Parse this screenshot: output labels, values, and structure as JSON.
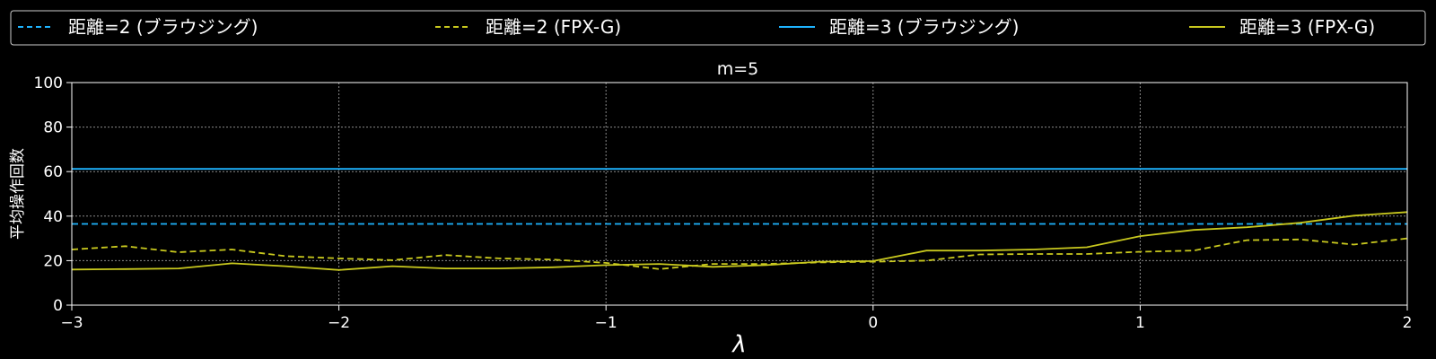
{
  "chart_data": {
    "type": "line",
    "title": "m=5",
    "xlabel": "λ",
    "ylabel": "平均操作回数",
    "xlim": [
      -3,
      2
    ],
    "ylim": [
      0,
      100
    ],
    "xticks": [
      -3,
      -2,
      -1,
      0,
      1,
      2
    ],
    "xtick_labels": [
      "−3",
      "−2",
      "−1",
      "0",
      "1",
      "2"
    ],
    "yticks": [
      0,
      20,
      40,
      60,
      80,
      100
    ],
    "ytick_labels": [
      "0",
      "20",
      "40",
      "60",
      "80",
      "100"
    ],
    "grid": true,
    "legend_position": "top",
    "x": [
      -3.0,
      -2.8,
      -2.6,
      -2.4,
      -2.2,
      -2.0,
      -1.8,
      -1.6,
      -1.4,
      -1.2,
      -1.0,
      -0.8,
      -0.6,
      -0.4,
      -0.2,
      0.0,
      0.2,
      0.4,
      0.6,
      0.8,
      1.0,
      1.2,
      1.4,
      1.6,
      1.8,
      2.0
    ],
    "series": [
      {
        "name": "距離=2 (ブラウジング)",
        "color": "#1eb4ff",
        "dash": "dashed",
        "values": [
          36.5,
          36.5,
          36.5,
          36.5,
          36.5,
          36.5,
          36.5,
          36.5,
          36.5,
          36.5,
          36.5,
          36.5,
          36.5,
          36.5,
          36.5,
          36.5,
          36.5,
          36.5,
          36.5,
          36.5,
          36.5,
          36.5,
          36.5,
          36.5,
          36.5,
          36.5
        ]
      },
      {
        "name": "距離=2 (FPX-G)",
        "color": "#c8c81e",
        "dash": "dashed",
        "values": [
          25.0,
          26.5,
          23.8,
          25.0,
          22.0,
          21.0,
          20.2,
          22.5,
          21.0,
          20.5,
          19.0,
          16.2,
          18.5,
          18.5,
          19.2,
          19.5,
          20.0,
          22.8,
          23.0,
          23.0,
          24.0,
          24.5,
          29.2,
          29.5,
          27.2,
          30.0
        ]
      },
      {
        "name": "距離=3 (ブラウジング)",
        "color": "#1eb4ff",
        "dash": "solid",
        "values": [
          61.2,
          61.2,
          61.2,
          61.2,
          61.2,
          61.2,
          61.2,
          61.2,
          61.2,
          61.2,
          61.2,
          61.2,
          61.2,
          61.2,
          61.2,
          61.2,
          61.2,
          61.2,
          61.2,
          61.2,
          61.2,
          61.2,
          61.2,
          61.2,
          61.2,
          61.2
        ]
      },
      {
        "name": "距離=3 (FPX-G)",
        "color": "#c8c81e",
        "dash": "solid",
        "values": [
          16.0,
          16.2,
          16.5,
          18.8,
          17.5,
          15.8,
          17.5,
          16.5,
          16.5,
          17.0,
          18.0,
          18.5,
          17.2,
          18.0,
          19.5,
          19.8,
          24.5,
          24.5,
          25.0,
          26.0,
          31.0,
          33.8,
          35.0,
          37.0,
          40.2,
          41.8
        ]
      }
    ]
  }
}
